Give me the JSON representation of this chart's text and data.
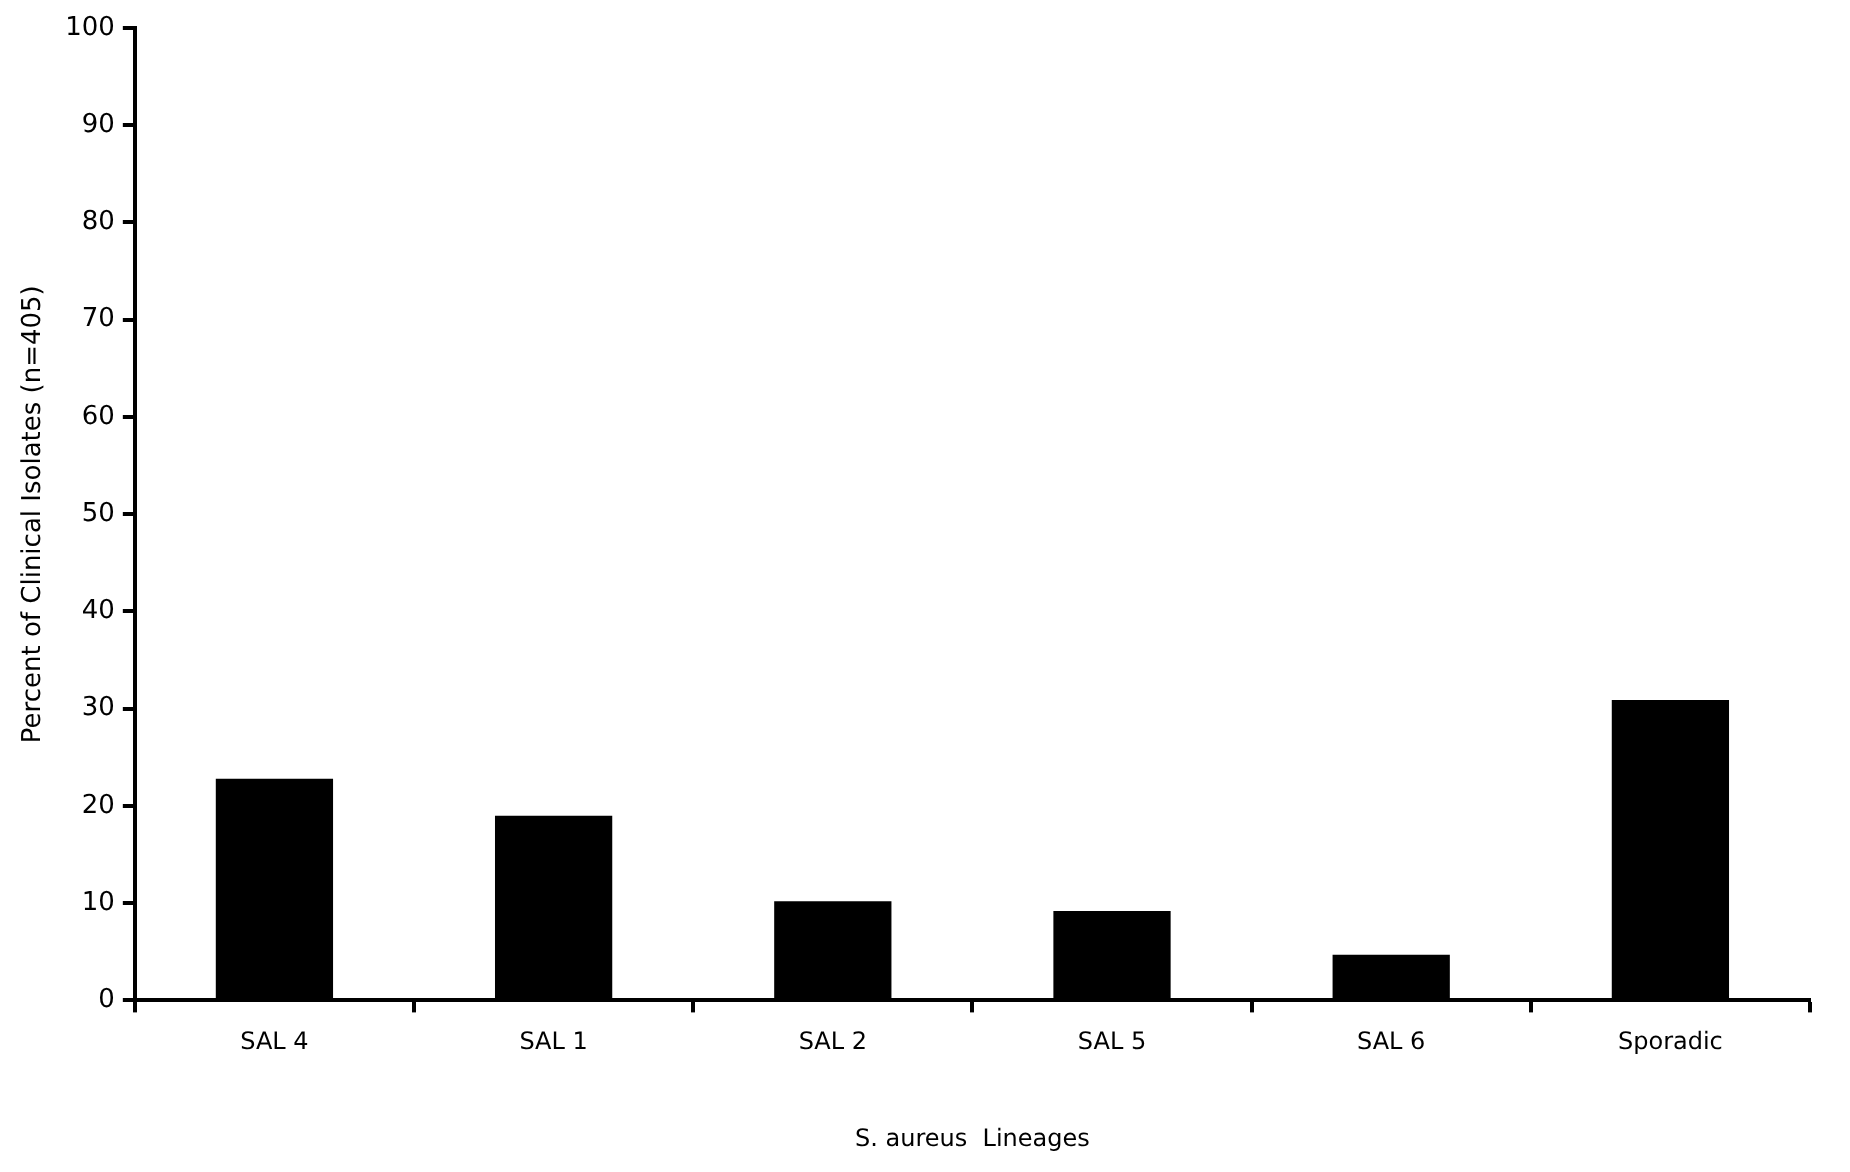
{
  "chart_data": {
    "type": "bar",
    "xlabel": "S. aureus  Lineages",
    "ylabel": "Percent of Clinical Isolates (n=405)",
    "categories": [
      "SAL 4",
      "SAL 1",
      "SAL 2",
      "SAL 5",
      "SAL 6",
      "Sporadic"
    ],
    "values": [
      22.8,
      19,
      10.2,
      9.2,
      4.7,
      30.9
    ],
    "color": "#000000",
    "ylim": [
      0,
      100
    ],
    "yticks": [
      0,
      10,
      20,
      30,
      40,
      50,
      60,
      70,
      80,
      90,
      100
    ],
    "grid": false,
    "legend": false
  }
}
